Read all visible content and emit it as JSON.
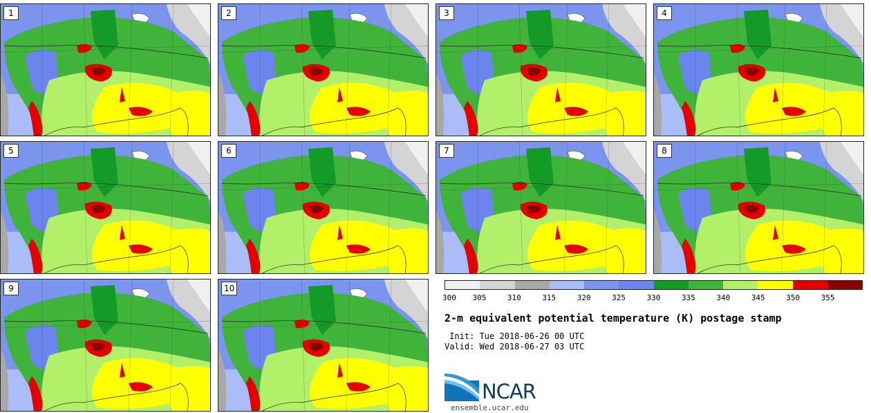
{
  "panels": [
    {
      "label": "1"
    },
    {
      "label": "2"
    },
    {
      "label": "3"
    },
    {
      "label": "4"
    },
    {
      "label": "5"
    },
    {
      "label": "6"
    },
    {
      "label": "7"
    },
    {
      "label": "8"
    },
    {
      "label": "9"
    },
    {
      "label": "10"
    }
  ],
  "colorbar": {
    "colors": [
      "#f0f0f0",
      "#d4d4d4",
      "#a8a8a8",
      "#aabdf8",
      "#7b94ee",
      "#6c84ee",
      "#149a26",
      "#40b43a",
      "#b2f06a",
      "#ffff00",
      "#e50000",
      "#8a0000"
    ],
    "ticks": [
      "300",
      "305",
      "310",
      "315",
      "320",
      "325",
      "330",
      "335",
      "340",
      "345",
      "350",
      "355"
    ]
  },
  "title": "2-m equivalent potential temperature (K) postage stamp",
  "init_text": " Init: Tue 2018-06-26 00 UTC",
  "valid_text": "Valid: Wed 2018-06-27 03 UTC",
  "logo_text": "NCAR",
  "site_text": "ensemble.ucar.edu"
}
